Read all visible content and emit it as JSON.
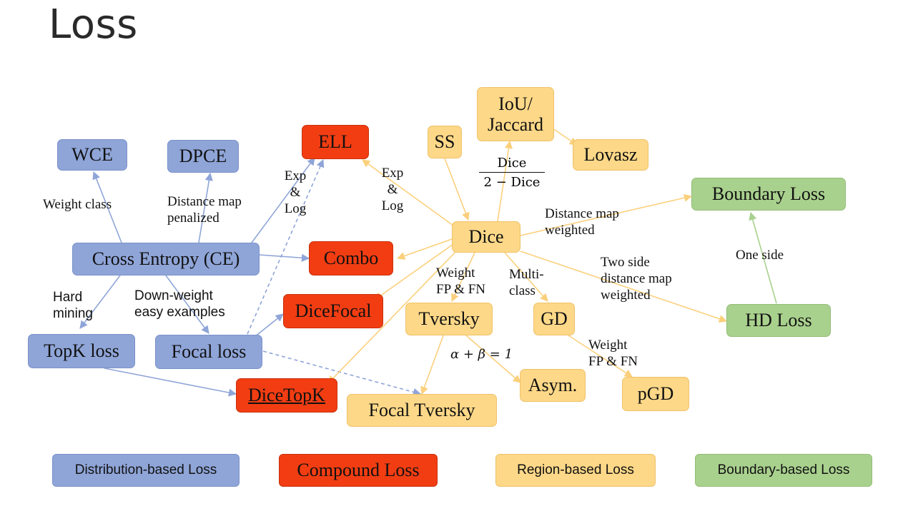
{
  "title": "Loss",
  "colors": {
    "distribution": "#8fa5d8",
    "compound": "#f23d12",
    "region": "#fdd888",
    "boundary": "#a9d18e",
    "edge_blue": "#8fa5d8",
    "edge_orange": "#fbd07c",
    "edge_green": "#a9d18e"
  },
  "nodes": {
    "wce": "WCE",
    "dpce": "DPCE",
    "ce": "Cross Entropy (CE)",
    "topk": "TopK loss",
    "focal": "Focal loss",
    "ell": "ELL",
    "combo": "Combo",
    "dicefocal": "DiceFocal",
    "dicetopk": "DiceTopK",
    "ss": "SS",
    "iou": "IoU/\nJaccard",
    "lovasz": "Lovasz",
    "dice": "Dice",
    "tversky": "Tversky",
    "gd": "GD",
    "asym": "Asym.",
    "pgd": "pGD",
    "focal_tversky": "Focal Tversky",
    "boundary_loss": "Boundary Loss",
    "hd_loss": "HD Loss"
  },
  "edge_labels": {
    "weight_class": "Weight class",
    "distance_map_penalized": "Distance map\npenalized",
    "hard_mining": "Hard\nmining",
    "down_weight": "Down-weight\neasy examples",
    "exp_log_left": "Exp\n&\nLog",
    "exp_log_right": "Exp\n&\nLog",
    "dice_frac_num": "Dice",
    "dice_frac_den": "2 − Dice",
    "distance_map_weighted": "Distance map\nweighted",
    "two_side": "Two side\ndistance map\nweighted",
    "one_side": "One side",
    "weight_fp_fn": "Weight\nFP & FN",
    "multi_class": "Multi-\nclass",
    "alpha_beta": "α + β = 1",
    "weight_fp_fn_2": "Weight\nFP & FN"
  },
  "legend": {
    "distribution": "Distribution-based Loss",
    "compound": "Compound Loss",
    "region": "Region-based Loss",
    "boundary": "Boundary-based Loss"
  }
}
